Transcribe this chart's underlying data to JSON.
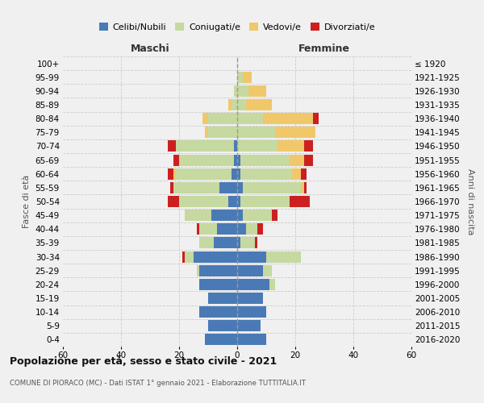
{
  "age_groups": [
    "0-4",
    "5-9",
    "10-14",
    "15-19",
    "20-24",
    "25-29",
    "30-34",
    "35-39",
    "40-44",
    "45-49",
    "50-54",
    "55-59",
    "60-64",
    "65-69",
    "70-74",
    "75-79",
    "80-84",
    "85-89",
    "90-94",
    "95-99",
    "100+"
  ],
  "birth_years": [
    "2016-2020",
    "2011-2015",
    "2006-2010",
    "2001-2005",
    "1996-2000",
    "1991-1995",
    "1986-1990",
    "1981-1985",
    "1976-1980",
    "1971-1975",
    "1966-1970",
    "1961-1965",
    "1956-1960",
    "1951-1955",
    "1946-1950",
    "1941-1945",
    "1936-1940",
    "1931-1935",
    "1926-1930",
    "1921-1925",
    "≤ 1920"
  ],
  "males": {
    "celibi": [
      11,
      10,
      13,
      10,
      13,
      13,
      15,
      8,
      7,
      9,
      3,
      6,
      2,
      1,
      1,
      0,
      0,
      0,
      0,
      0,
      0
    ],
    "coniugati": [
      0,
      0,
      0,
      0,
      0,
      1,
      3,
      5,
      6,
      9,
      17,
      16,
      19,
      19,
      20,
      10,
      10,
      2,
      1,
      0,
      0
    ],
    "vedovi": [
      0,
      0,
      0,
      0,
      0,
      0,
      0,
      0,
      0,
      0,
      0,
      0,
      1,
      0,
      0,
      1,
      2,
      1,
      0,
      0,
      0
    ],
    "divorziati": [
      0,
      0,
      0,
      0,
      0,
      0,
      1,
      0,
      1,
      0,
      4,
      1,
      2,
      2,
      3,
      0,
      0,
      0,
      0,
      0,
      0
    ]
  },
  "females": {
    "nubili": [
      10,
      8,
      10,
      9,
      11,
      9,
      10,
      1,
      3,
      2,
      1,
      2,
      1,
      1,
      0,
      0,
      0,
      0,
      0,
      0,
      0
    ],
    "coniugate": [
      0,
      0,
      0,
      0,
      2,
      3,
      12,
      5,
      4,
      10,
      17,
      20,
      18,
      17,
      14,
      13,
      9,
      3,
      4,
      2,
      0
    ],
    "vedove": [
      0,
      0,
      0,
      0,
      0,
      0,
      0,
      0,
      0,
      0,
      0,
      1,
      3,
      5,
      9,
      14,
      17,
      9,
      6,
      3,
      0
    ],
    "divorziate": [
      0,
      0,
      0,
      0,
      0,
      0,
      0,
      1,
      2,
      2,
      7,
      1,
      2,
      3,
      3,
      0,
      2,
      0,
      0,
      0,
      0
    ]
  },
  "colors": {
    "celibi": "#4a7ab5",
    "coniugati": "#c5d9a0",
    "vedovi": "#f0c86a",
    "divorziati": "#cc2020"
  },
  "xlim": 60,
  "title": "Popolazione per età, sesso e stato civile - 2021",
  "subtitle": "COMUNE DI PIORACO (MC) - Dati ISTAT 1° gennaio 2021 - Elaborazione TUTTITALIA.IT",
  "ylabel_left": "Fasce di età",
  "ylabel_right": "Anni di nascita",
  "xlabel_left": "Maschi",
  "xlabel_right": "Femmine",
  "legend_labels": [
    "Celibi/Nubili",
    "Coniugati/e",
    "Vedovi/e",
    "Divorziati/e"
  ],
  "background_color": "#f0f0f0"
}
